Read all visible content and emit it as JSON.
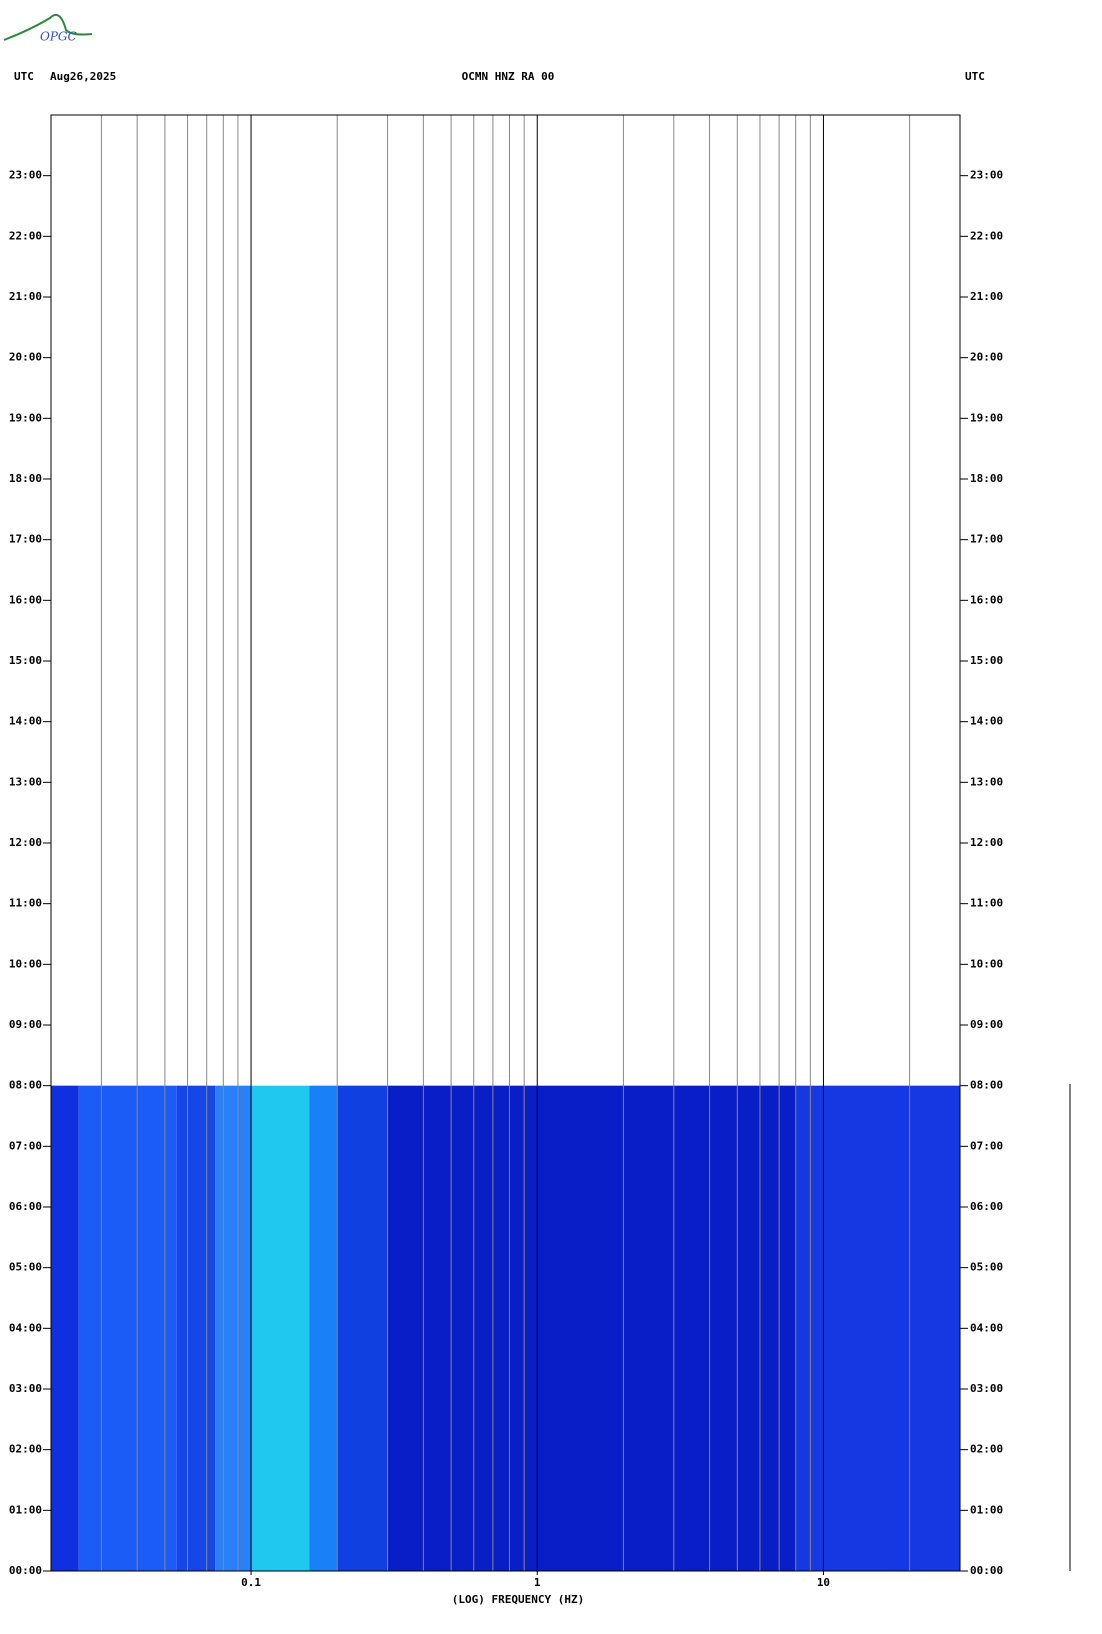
{
  "logo": "OPGC",
  "chart_data": {
    "type": "spectrogram",
    "title": "OCMN HNZ RA 00",
    "date": "Aug26,2025",
    "timezone_left": "UTC",
    "timezone_right": "UTC",
    "x_label": "(LOG) FREQUENCY (HZ)",
    "x_log": true,
    "xlim": [
      0.02,
      30
    ],
    "xticks": [
      0.1,
      1,
      10
    ],
    "minor_xticks": [
      0.03,
      0.04,
      0.05,
      0.06,
      0.07,
      0.08,
      0.09,
      0.2,
      0.3,
      0.4,
      0.5,
      0.6,
      0.7,
      0.8,
      0.9,
      2,
      3,
      4,
      5,
      6,
      7,
      8,
      9,
      20
    ],
    "ylim": [
      0,
      24
    ],
    "yticks": [
      {
        "value": 0,
        "label": "00:00"
      },
      {
        "value": 1,
        "label": "01:00"
      },
      {
        "value": 2,
        "label": "02:00"
      },
      {
        "value": 3,
        "label": "03:00"
      },
      {
        "value": 4,
        "label": "04:00"
      },
      {
        "value": 5,
        "label": "05:00"
      },
      {
        "value": 6,
        "label": "06:00"
      },
      {
        "value": 7,
        "label": "07:00"
      },
      {
        "value": 8,
        "label": "08:00"
      },
      {
        "value": 9,
        "label": "09:00"
      },
      {
        "value": 10,
        "label": "10:00"
      },
      {
        "value": 11,
        "label": "11:00"
      },
      {
        "value": 12,
        "label": "12:00"
      },
      {
        "value": 13,
        "label": "13:00"
      },
      {
        "value": 14,
        "label": "14:00"
      },
      {
        "value": 15,
        "label": "15:00"
      },
      {
        "value": 16,
        "label": "16:00"
      },
      {
        "value": 17,
        "label": "17:00"
      },
      {
        "value": 18,
        "label": "18:00"
      },
      {
        "value": 19,
        "label": "19:00"
      },
      {
        "value": 20,
        "label": "20:00"
      },
      {
        "value": 21,
        "label": "21:00"
      },
      {
        "value": 22,
        "label": "22:00"
      },
      {
        "value": 23,
        "label": "23:00"
      }
    ],
    "time_range": [
      0,
      8
    ],
    "bands": [
      {
        "from": 0.02,
        "to": 0.025,
        "color": "#1030e0"
      },
      {
        "from": 0.025,
        "to": 0.055,
        "color": "#1a5cf5"
      },
      {
        "from": 0.055,
        "to": 0.075,
        "color": "#1446e8"
      },
      {
        "from": 0.075,
        "to": 0.1,
        "color": "#2a80f8"
      },
      {
        "from": 0.1,
        "to": 0.16,
        "color": "#20c8f0"
      },
      {
        "from": 0.16,
        "to": 0.2,
        "color": "#1a80f5"
      },
      {
        "from": 0.2,
        "to": 0.3,
        "color": "#1040e0"
      },
      {
        "from": 0.3,
        "to": 8,
        "color": "#0a1ec8"
      },
      {
        "from": 8,
        "to": 30,
        "color": "#1638e2"
      }
    ]
  }
}
